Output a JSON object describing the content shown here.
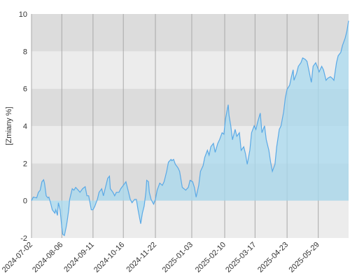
{
  "chart_data": {
    "type": "area",
    "y_label": "[Zmiany %]",
    "x": [
      "2024-07-02",
      "2024-07-04",
      "2024-07-08",
      "2024-07-10",
      "2024-07-12",
      "2024-07-14",
      "2024-07-16",
      "2024-07-17",
      "2024-07-19",
      "2024-07-21",
      "2024-07-22",
      "2024-07-24",
      "2024-07-26",
      "2024-07-29",
      "2024-07-30",
      "2024-08-01",
      "2024-08-02",
      "2024-08-04",
      "2024-08-06",
      "2024-08-07",
      "2024-08-09",
      "2024-08-11",
      "2024-08-12",
      "2024-08-14",
      "2024-08-15",
      "2024-08-18",
      "2024-08-20",
      "2024-08-22",
      "2024-08-25",
      "2024-08-27",
      "2024-08-30",
      "2024-09-02",
      "2024-09-04",
      "2024-09-06",
      "2024-09-09",
      "2024-09-11",
      "2024-09-13",
      "2024-09-16",
      "2024-09-18",
      "2024-09-21",
      "2024-09-23",
      "2024-09-25",
      "2024-09-28",
      "2024-09-30",
      "2024-10-01",
      "2024-10-04",
      "2024-10-06",
      "2024-10-08",
      "2024-10-11",
      "2024-10-13",
      "2024-10-16",
      "2024-10-19",
      "2024-10-21",
      "2024-10-24",
      "2024-10-26",
      "2024-10-29",
      "2024-10-31",
      "2024-11-02",
      "2024-11-05",
      "2024-11-07",
      "2024-11-09",
      "2024-11-11",
      "2024-11-12",
      "2024-11-14",
      "2024-11-15",
      "2024-11-17",
      "2024-11-19",
      "2024-11-20",
      "2024-11-22",
      "2024-11-24",
      "2024-11-27",
      "2024-11-30",
      "2024-12-02",
      "2024-12-05",
      "2024-12-07",
      "2024-12-10",
      "2024-12-11",
      "2024-12-13",
      "2024-12-15",
      "2024-12-18",
      "2024-12-20",
      "2024-12-23",
      "2024-12-25",
      "2024-12-27",
      "2024-12-30",
      "2025-01-01",
      "2025-01-04",
      "2025-01-06",
      "2025-01-08",
      "2025-01-11",
      "2025-01-13",
      "2025-01-16",
      "2025-01-18",
      "2025-01-21",
      "2025-01-23",
      "2025-01-25",
      "2025-01-28",
      "2025-01-30",
      "2025-02-02",
      "2025-02-04",
      "2025-02-07",
      "2025-02-09",
      "2025-02-11",
      "2025-02-14",
      "2025-02-15",
      "2025-02-17",
      "2025-02-19",
      "2025-02-22",
      "2025-02-24",
      "2025-02-27",
      "2025-03-01",
      "2025-03-04",
      "2025-03-06",
      "2025-03-08",
      "2025-03-11",
      "2025-03-13",
      "2025-03-16",
      "2025-03-18",
      "2025-03-20",
      "2025-03-23",
      "2025-03-25",
      "2025-03-28",
      "2025-03-30",
      "2025-04-02",
      "2025-04-04",
      "2025-04-06",
      "2025-04-09",
      "2025-04-11",
      "2025-04-14",
      "2025-04-16",
      "2025-04-19",
      "2025-04-21",
      "2025-04-23",
      "2025-04-26",
      "2025-04-28",
      "2025-04-30",
      "2025-05-01",
      "2025-05-04",
      "2025-05-06",
      "2025-05-09",
      "2025-05-11",
      "2025-05-14",
      "2025-05-16",
      "2025-05-18",
      "2025-05-21",
      "2025-05-23",
      "2025-05-26",
      "2025-05-28",
      "2025-05-30",
      "2025-06-02",
      "2025-06-04",
      "2025-06-07",
      "2025-06-09",
      "2025-06-12",
      "2025-06-14",
      "2025-06-16",
      "2025-06-19",
      "2025-06-21",
      "2025-06-24",
      "2025-06-26",
      "2025-06-29",
      "2025-07-01",
      "2025-07-03"
    ],
    "series": [
      {
        "color": "#5aa9e6",
        "fill": "#a8d9ef",
        "values": [
          0,
          0.19,
          0.15,
          0.45,
          0.56,
          1.01,
          1.12,
          0.94,
          0.26,
          0.15,
          0.19,
          -0.11,
          -0.49,
          -0.67,
          -0.49,
          -0.79,
          -0.11,
          -0.49,
          -1.42,
          -1.8,
          -1.87,
          -1.42,
          -1.16,
          -0.49,
          0.07,
          0.64,
          0.56,
          0.71,
          0.56,
          0.45,
          0.64,
          0.75,
          0.26,
          0.26,
          -0.49,
          -0.49,
          -0.3,
          0.07,
          0.45,
          0.64,
          0.26,
          0.64,
          1.2,
          1.31,
          0.64,
          0.45,
          0.26,
          0.45,
          0.45,
          0.64,
          0.82,
          1.01,
          0.64,
          0.07,
          -0.11,
          0.07,
          0.07,
          -0.49,
          -1.24,
          -0.67,
          -0.3,
          0.45,
          1.09,
          1.01,
          0.45,
          0.07,
          -0.11,
          -0.19,
          0.07,
          0.56,
          0.94,
          0.82,
          1.01,
          1.57,
          2.06,
          2.21,
          2.14,
          2.21,
          1.95,
          1.76,
          1.57,
          0.71,
          0.64,
          0.56,
          0.71,
          1.09,
          1.01,
          0.71,
          0.19,
          0.82,
          1.57,
          1.87,
          2.32,
          2.7,
          2.44,
          2.89,
          3.07,
          2.59,
          3.07,
          3.26,
          3.64,
          3.56,
          4.39,
          5.14,
          4.57,
          4.01,
          3.26,
          3.82,
          3.45,
          3.64,
          2.7,
          2.89,
          2.51,
          1.95,
          2.7,
          3.64,
          4.01,
          3.82,
          4.2,
          4.69,
          3.64,
          4.01,
          3.26,
          2.7,
          2.06,
          1.57,
          1.95,
          2.89,
          3.82,
          4.01,
          4.76,
          5.51,
          5.96,
          6.19,
          6.64,
          7.01,
          6.45,
          6.82,
          7.2,
          7.39,
          7.65,
          7.57,
          7.46,
          7.01,
          6.34,
          7.2,
          7.39,
          7.16,
          6.9,
          7.2,
          7.01,
          6.45,
          6.56,
          6.64,
          6.56,
          6.45,
          7.39,
          7.76,
          7.95,
          8.32,
          8.7,
          9.07,
          9.64
        ]
      }
    ],
    "xlim": [
      "2024-07-02",
      "2025-07-03"
    ],
    "xticks": [
      "2024-07-02",
      "2024-08-06",
      "2024-09-11",
      "2024-10-16",
      "2024-11-22",
      "2025-01-03",
      "2025-02-10",
      "2025-03-17",
      "2025-04-23",
      "2025-05-29"
    ],
    "ylim": [
      -2,
      10
    ],
    "yticks": [
      -2,
      0,
      2,
      4,
      6,
      8,
      10
    ],
    "band_colors": [
      "#ececec",
      "#dcdcdc"
    ],
    "grid_color": "#a8a8a8"
  }
}
